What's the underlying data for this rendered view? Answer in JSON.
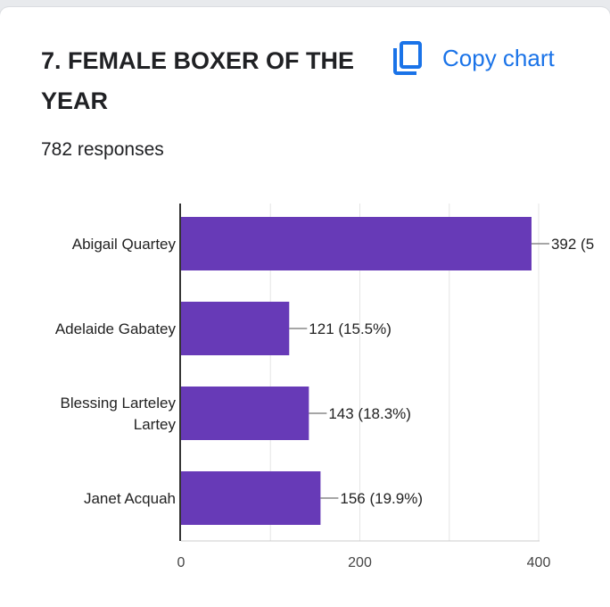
{
  "question_title": "7. FEMALE BOXER OF THE YEAR",
  "copy_chart_label": "Copy chart",
  "copy_icon": "copy-icon",
  "responses_text": "782 responses",
  "colors": {
    "bar": "#673ab7",
    "accent": "#1a73e8"
  },
  "chart_data": {
    "type": "bar",
    "orientation": "horizontal",
    "title": "",
    "categories": [
      "Abigail Quartey",
      "Adelaide Gabatey",
      "Blessing Larteley Lartey",
      "Janet Acquah"
    ],
    "category_lines": [
      [
        "Abigail Quartey"
      ],
      [
        "Adelaide Gabatey"
      ],
      [
        "Blessing Larteley",
        "Lartey"
      ],
      [
        "Janet Acquah"
      ]
    ],
    "values": [
      392,
      121,
      143,
      156
    ],
    "data_labels": [
      "392 (5",
      "121 (15.5%)",
      "143 (18.3%)",
      "156 (19.9%)"
    ],
    "x_ticks": [
      0,
      200,
      400
    ],
    "xlim": [
      0,
      400
    ],
    "grid": true,
    "xlabel": "",
    "ylabel": ""
  }
}
